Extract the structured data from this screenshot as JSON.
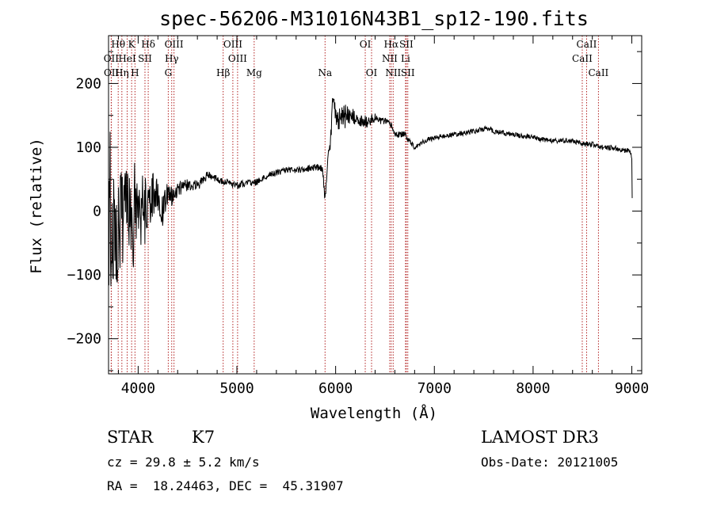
{
  "chart_data": {
    "type": "line",
    "title": "spec-56206-M31016N43B1_sp12-190.fits",
    "xlabel": "Wavelength (Å)",
    "ylabel": "Flux (relative)",
    "xlim": [
      3700,
      9100
    ],
    "ylim": [
      -255,
      275
    ],
    "xticks": [
      4000,
      5000,
      6000,
      7000,
      8000,
      9000
    ],
    "yticks": [
      -200,
      -100,
      0,
      100,
      200
    ],
    "spectrum_anchors": {
      "x": [
        3700,
        3750,
        3800,
        3850,
        3900,
        3950,
        4000,
        4050,
        4100,
        4150,
        4200,
        4250,
        4300,
        4350,
        4400,
        4500,
        4600,
        4700,
        4800,
        4900,
        5000,
        5100,
        5200,
        5300,
        5400,
        5500,
        5600,
        5700,
        5800,
        5870,
        5890,
        5905,
        5920,
        5950,
        5970,
        6000,
        6050,
        6100,
        6200,
        6300,
        6400,
        6500,
        6563,
        6600,
        6700,
        6800,
        6900,
        7000,
        7200,
        7400,
        7550,
        7600,
        7800,
        8000,
        8200,
        8400,
        8500,
        8600,
        8700,
        8800,
        8900,
        8980,
        9000,
        9005
      ],
      "y": [
        0,
        -20,
        -40,
        -10,
        0,
        -30,
        10,
        20,
        0,
        30,
        20,
        0,
        30,
        20,
        35,
        40,
        40,
        55,
        50,
        45,
        40,
        45,
        45,
        55,
        60,
        65,
        65,
        65,
        70,
        65,
        20,
        40,
        90,
        110,
        170,
        150,
        145,
        150,
        140,
        140,
        145,
        140,
        135,
        120,
        120,
        100,
        110,
        115,
        120,
        125,
        130,
        125,
        120,
        115,
        110,
        110,
        105,
        105,
        100,
        100,
        95,
        95,
        85,
        0
      ]
    },
    "noise_amplitude": {
      "x": [
        3700,
        3800,
        3900,
        4000,
        4100,
        4200,
        4300,
        4400,
        4600,
        4900,
        5500,
        5900,
        6000,
        6100,
        6500,
        6800,
        9000
      ],
      "y": [
        90,
        90,
        70,
        50,
        40,
        30,
        18,
        12,
        8,
        6,
        5,
        6,
        18,
        14,
        6,
        4,
        4
      ]
    },
    "lines": [
      {
        "label": "Hθ",
        "x": 3798,
        "row": 0
      },
      {
        "label": "K",
        "x": 3934,
        "row": 0
      },
      {
        "label": "Hδ",
        "x": 4102,
        "row": 0
      },
      {
        "label": "OIII",
        "x": 4363,
        "row": 0
      },
      {
        "label": "OIII",
        "x": 4959,
        "row": 0
      },
      {
        "label": "OI",
        "x": 6300,
        "row": 0
      },
      {
        "label": "Hα",
        "x": 6563,
        "row": 0
      },
      {
        "label": "SII",
        "x": 6716,
        "row": 0
      },
      {
        "label": "CaII",
        "x": 8542,
        "row": 0
      },
      {
        "label": "OII",
        "x": 3727,
        "row": 1
      },
      {
        "label": "HeI",
        "x": 3889,
        "row": 1
      },
      {
        "label": "SII",
        "x": 4069,
        "row": 1
      },
      {
        "label": "Hγ",
        "x": 4340,
        "row": 1
      },
      {
        "label": "OIII",
        "x": 5007,
        "row": 1
      },
      {
        "label": "NII",
        "x": 6548,
        "row": 1
      },
      {
        "label": "Li",
        "x": 6708,
        "row": 1
      },
      {
        "label": "CaII",
        "x": 8498,
        "row": 1
      },
      {
        "label": "OII",
        "x": 3729,
        "row": 2
      },
      {
        "label": "Hη",
        "x": 3835,
        "row": 2
      },
      {
        "label": "H",
        "x": 3968,
        "row": 2
      },
      {
        "label": "G",
        "x": 4305,
        "row": 2
      },
      {
        "label": "Hβ",
        "x": 4861,
        "row": 2
      },
      {
        "label": "Mg",
        "x": 5175,
        "row": 2
      },
      {
        "label": "Na",
        "x": 5893,
        "row": 2
      },
      {
        "label": "OI",
        "x": 6364,
        "row": 2
      },
      {
        "label": "NII",
        "x": 6583,
        "row": 2
      },
      {
        "label": "SII",
        "x": 6731,
        "row": 2
      },
      {
        "label": "CaII",
        "x": 8662,
        "row": 2
      }
    ],
    "line_color": "#b22222",
    "grid": false,
    "legend": "none"
  },
  "info": {
    "class": "STAR",
    "subclass": "K7",
    "cz": "cz = 29.8 ± 5.2 km/s",
    "coords": "RA =  18.24463, DEC =  45.31907",
    "survey": "LAMOST DR3",
    "obs_date": "Obs-Date: 20121005"
  }
}
